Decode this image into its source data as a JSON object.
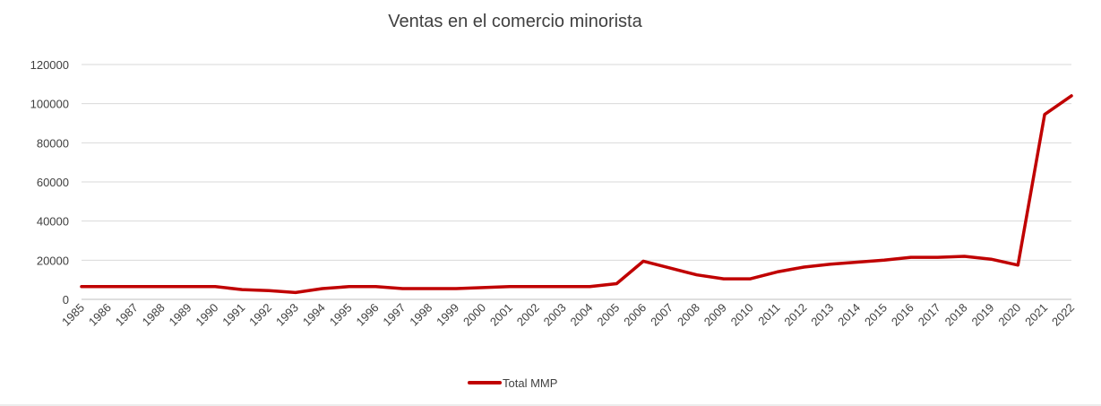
{
  "chart_data": {
    "type": "line",
    "title": "Ventas en el comercio minorista",
    "xlabel": "",
    "ylabel": "",
    "ylim": [
      0,
      120000
    ],
    "yticks": [
      "0",
      "20000",
      "40000",
      "60000",
      "80000",
      "100000",
      "120000"
    ],
    "grid": true,
    "legend_position": "bottom",
    "categories": [
      "1985",
      "1986",
      "1987",
      "1988",
      "1989",
      "1990",
      "1991",
      "1992",
      "1993",
      "1994",
      "1995",
      "1996",
      "1997",
      "1998",
      "1999",
      "2000",
      "2001",
      "2002",
      "2003",
      "2004",
      "2005",
      "2006",
      "2007",
      "2008",
      "2009",
      "2010",
      "2011",
      "2012",
      "2013",
      "2014",
      "2015",
      "2016",
      "2017",
      "2018",
      "2019",
      "2020",
      "2021",
      "2022"
    ],
    "series": [
      {
        "name": "Total MMP",
        "color": "#c00000",
        "values": [
          6500,
          6500,
          6500,
          6500,
          6500,
          6500,
          5000,
          4500,
          3500,
          5500,
          6500,
          6500,
          5500,
          5500,
          5500,
          6000,
          6500,
          6500,
          6500,
          6500,
          8000,
          19500,
          16000,
          12500,
          10500,
          10500,
          14000,
          16500,
          18000,
          19000,
          20000,
          21500,
          21500,
          22000,
          20500,
          17500,
          94500,
          104000
        ]
      }
    ]
  }
}
